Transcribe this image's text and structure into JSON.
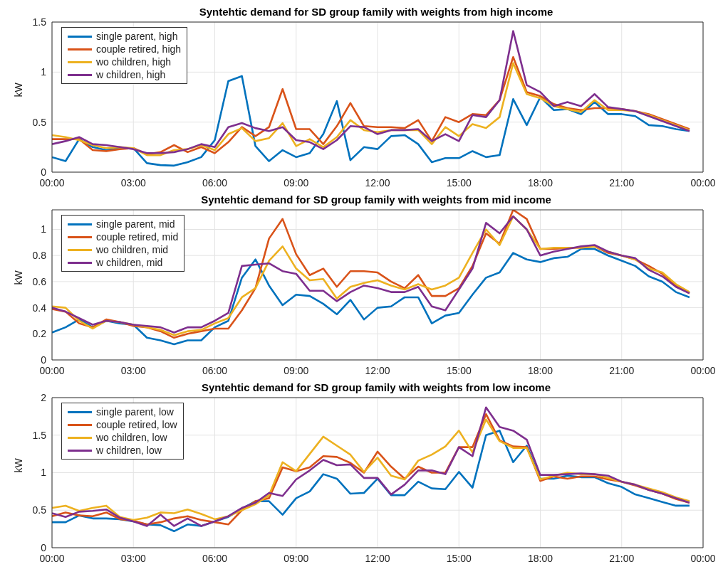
{
  "chart_data": [
    {
      "type": "line",
      "title": "Syntehtic demand for SD group family with weights from high income",
      "ylabel": "kW",
      "x": [
        0,
        0.5,
        1,
        1.5,
        2,
        2.5,
        3,
        3.5,
        4,
        4.5,
        5,
        5.5,
        6,
        6.5,
        7,
        7.5,
        8,
        8.5,
        9,
        9.5,
        10,
        10.5,
        11,
        11.5,
        12,
        12.5,
        13,
        13.5,
        14,
        14.5,
        15,
        15.5,
        16,
        16.5,
        17,
        17.5,
        18,
        18.5,
        19,
        19.5,
        20,
        20.5,
        21,
        21.5,
        22,
        22.5,
        23,
        23.5
      ],
      "xlim": [
        0,
        24
      ],
      "xticks": [
        {
          "value": 0,
          "label": "00:00"
        },
        {
          "value": 3,
          "label": "03:00"
        },
        {
          "value": 6,
          "label": "06:00"
        },
        {
          "value": 9,
          "label": "09:00"
        },
        {
          "value": 12,
          "label": "12:00"
        },
        {
          "value": 15,
          "label": "15:00"
        },
        {
          "value": 18,
          "label": "18:00"
        },
        {
          "value": 21,
          "label": "21:00"
        },
        {
          "value": 24,
          "label": "00:00"
        }
      ],
      "ylim": [
        0,
        1.5
      ],
      "yticks": [
        0,
        0.5,
        1,
        1.5
      ],
      "grid": true,
      "legend": "top left",
      "marker": "none",
      "line_style": "solid",
      "series": [
        {
          "name": "single parent, high",
          "color": "#0072bd",
          "values": [
            0.15,
            0.11,
            0.33,
            0.25,
            0.22,
            0.24,
            0.24,
            0.09,
            0.07,
            0.065,
            0.1,
            0.15,
            0.32,
            0.91,
            0.96,
            0.26,
            0.11,
            0.22,
            0.15,
            0.19,
            0.38,
            0.71,
            0.12,
            0.25,
            0.23,
            0.36,
            0.37,
            0.28,
            0.1,
            0.14,
            0.14,
            0.21,
            0.15,
            0.17,
            0.73,
            0.47,
            0.75,
            0.62,
            0.63,
            0.58,
            0.7,
            0.58,
            0.58,
            0.56,
            0.47,
            0.46,
            0.43,
            0.41
          ]
        },
        {
          "name": "couple retired, high",
          "color": "#d95319",
          "values": [
            0.33,
            0.33,
            0.33,
            0.22,
            0.21,
            0.23,
            0.24,
            0.18,
            0.2,
            0.27,
            0.2,
            0.25,
            0.19,
            0.3,
            0.45,
            0.36,
            0.45,
            0.83,
            0.43,
            0.43,
            0.28,
            0.46,
            0.69,
            0.46,
            0.45,
            0.45,
            0.44,
            0.52,
            0.31,
            0.55,
            0.5,
            0.58,
            0.57,
            0.72,
            1.15,
            0.8,
            0.76,
            0.68,
            0.64,
            0.62,
            0.64,
            0.64,
            0.63,
            0.61,
            0.58,
            0.53,
            0.48,
            0.43
          ]
        },
        {
          "name": "wo children, high",
          "color": "#edb120",
          "values": [
            0.37,
            0.35,
            0.32,
            0.27,
            0.24,
            0.25,
            0.24,
            0.17,
            0.17,
            0.22,
            0.23,
            0.27,
            0.22,
            0.38,
            0.44,
            0.31,
            0.34,
            0.49,
            0.26,
            0.33,
            0.25,
            0.35,
            0.52,
            0.42,
            0.4,
            0.42,
            0.42,
            0.42,
            0.28,
            0.45,
            0.36,
            0.48,
            0.44,
            0.55,
            1.09,
            0.78,
            0.74,
            0.66,
            0.63,
            0.6,
            0.72,
            0.62,
            0.62,
            0.61,
            0.57,
            0.52,
            0.47,
            0.42
          ]
        },
        {
          "name": "w children, high",
          "color": "#7e2f8e",
          "values": [
            0.28,
            0.31,
            0.35,
            0.28,
            0.27,
            0.25,
            0.23,
            0.19,
            0.19,
            0.2,
            0.23,
            0.28,
            0.25,
            0.45,
            0.49,
            0.44,
            0.41,
            0.45,
            0.32,
            0.3,
            0.23,
            0.32,
            0.46,
            0.45,
            0.38,
            0.42,
            0.42,
            0.43,
            0.31,
            0.38,
            0.31,
            0.57,
            0.55,
            0.72,
            1.41,
            0.87,
            0.8,
            0.66,
            0.7,
            0.66,
            0.78,
            0.65,
            0.63,
            0.61,
            0.56,
            0.51,
            0.46,
            0.41
          ]
        }
      ]
    },
    {
      "type": "line",
      "title": "Syntehtic demand for SD group family with weights from mid income",
      "ylabel": "kW",
      "x": [
        0,
        0.5,
        1,
        1.5,
        2,
        2.5,
        3,
        3.5,
        4,
        4.5,
        5,
        5.5,
        6,
        6.5,
        7,
        7.5,
        8,
        8.5,
        9,
        9.5,
        10,
        10.5,
        11,
        11.5,
        12,
        12.5,
        13,
        13.5,
        14,
        14.5,
        15,
        15.5,
        16,
        16.5,
        17,
        17.5,
        18,
        18.5,
        19,
        19.5,
        20,
        20.5,
        21,
        21.5,
        22,
        22.5,
        23,
        23.5
      ],
      "xlim": [
        0,
        24
      ],
      "xticks": [
        {
          "value": 0,
          "label": "00:00"
        },
        {
          "value": 3,
          "label": "03:00"
        },
        {
          "value": 6,
          "label": "06:00"
        },
        {
          "value": 9,
          "label": "09:00"
        },
        {
          "value": 12,
          "label": "12:00"
        },
        {
          "value": 15,
          "label": "15:00"
        },
        {
          "value": 18,
          "label": "18:00"
        },
        {
          "value": 21,
          "label": "21:00"
        },
        {
          "value": 24,
          "label": "00:00"
        }
      ],
      "ylim": [
        0,
        1.15
      ],
      "yticks": [
        0,
        0.2,
        0.4,
        0.6,
        0.8,
        1
      ],
      "grid": true,
      "legend": "top left",
      "marker": "none",
      "line_style": "solid",
      "series": [
        {
          "name": "single parent, mid",
          "color": "#0072bd",
          "values": [
            0.21,
            0.25,
            0.31,
            0.25,
            0.3,
            0.28,
            0.27,
            0.17,
            0.15,
            0.12,
            0.15,
            0.15,
            0.25,
            0.3,
            0.63,
            0.77,
            0.57,
            0.42,
            0.5,
            0.49,
            0.43,
            0.35,
            0.46,
            0.31,
            0.4,
            0.41,
            0.48,
            0.48,
            0.28,
            0.34,
            0.36,
            0.5,
            0.63,
            0.67,
            0.82,
            0.77,
            0.75,
            0.78,
            0.79,
            0.85,
            0.85,
            0.8,
            0.76,
            0.72,
            0.64,
            0.6,
            0.52,
            0.48
          ]
        },
        {
          "name": "couple retired, mid",
          "color": "#d95319",
          "values": [
            0.39,
            0.37,
            0.28,
            0.25,
            0.31,
            0.29,
            0.26,
            0.25,
            0.22,
            0.17,
            0.2,
            0.22,
            0.24,
            0.24,
            0.38,
            0.55,
            0.93,
            1.08,
            0.81,
            0.65,
            0.7,
            0.56,
            0.68,
            0.68,
            0.67,
            0.6,
            0.55,
            0.65,
            0.49,
            0.49,
            0.55,
            0.72,
            0.97,
            0.89,
            1.15,
            1.08,
            0.85,
            0.85,
            0.86,
            0.86,
            0.87,
            0.82,
            0.8,
            0.77,
            0.72,
            0.66,
            0.57,
            0.51
          ]
        },
        {
          "name": "wo children, mid",
          "color": "#edb120",
          "values": [
            0.41,
            0.4,
            0.3,
            0.24,
            0.3,
            0.29,
            0.27,
            0.25,
            0.23,
            0.19,
            0.22,
            0.23,
            0.28,
            0.32,
            0.48,
            0.55,
            0.76,
            0.87,
            0.7,
            0.61,
            0.62,
            0.47,
            0.56,
            0.59,
            0.61,
            0.57,
            0.54,
            0.58,
            0.54,
            0.57,
            0.63,
            0.82,
            1.0,
            0.88,
            1.1,
            1.0,
            0.85,
            0.86,
            0.86,
            0.86,
            0.87,
            0.83,
            0.8,
            0.77,
            0.7,
            0.67,
            0.58,
            0.52
          ]
        },
        {
          "name": "w children, mid",
          "color": "#7e2f8e",
          "values": [
            0.4,
            0.37,
            0.32,
            0.27,
            0.3,
            0.29,
            0.27,
            0.26,
            0.25,
            0.21,
            0.25,
            0.25,
            0.3,
            0.36,
            0.72,
            0.73,
            0.74,
            0.68,
            0.66,
            0.53,
            0.53,
            0.45,
            0.52,
            0.57,
            0.55,
            0.52,
            0.52,
            0.56,
            0.41,
            0.38,
            0.54,
            0.7,
            1.05,
            0.97,
            1.1,
            1.0,
            0.8,
            0.83,
            0.85,
            0.87,
            0.88,
            0.83,
            0.8,
            0.78,
            0.69,
            0.64,
            0.56,
            0.51
          ]
        }
      ]
    },
    {
      "type": "line",
      "title": "Syntehtic demand for SD group family with weights from low income",
      "ylabel": "kW",
      "x": [
        0,
        0.5,
        1,
        1.5,
        2,
        2.5,
        3,
        3.5,
        4,
        4.5,
        5,
        5.5,
        6,
        6.5,
        7,
        7.5,
        8,
        8.5,
        9,
        9.5,
        10,
        10.5,
        11,
        11.5,
        12,
        12.5,
        13,
        13.5,
        14,
        14.5,
        15,
        15.5,
        16,
        16.5,
        17,
        17.5,
        18,
        18.5,
        19,
        19.5,
        20,
        20.5,
        21,
        21.5,
        22,
        22.5,
        23,
        23.5
      ],
      "xlim": [
        0,
        24
      ],
      "xticks": [
        {
          "value": 0,
          "label": "00:00"
        },
        {
          "value": 3,
          "label": "03:00"
        },
        {
          "value": 6,
          "label": "06:00"
        },
        {
          "value": 9,
          "label": "09:00"
        },
        {
          "value": 12,
          "label": "12:00"
        },
        {
          "value": 15,
          "label": "15:00"
        },
        {
          "value": 18,
          "label": "18:00"
        },
        {
          "value": 21,
          "label": "21:00"
        },
        {
          "value": 24,
          "label": "00:00"
        }
      ],
      "ylim": [
        0,
        2
      ],
      "yticks": [
        0,
        0.5,
        1,
        1.5,
        2
      ],
      "grid": true,
      "legend": "top left",
      "marker": "none",
      "line_style": "solid",
      "series": [
        {
          "name": "single parent, low",
          "color": "#0072bd",
          "values": [
            0.34,
            0.34,
            0.43,
            0.39,
            0.39,
            0.38,
            0.35,
            0.31,
            0.3,
            0.22,
            0.31,
            0.29,
            0.35,
            0.41,
            0.52,
            0.62,
            0.62,
            0.44,
            0.66,
            0.75,
            0.98,
            0.92,
            0.72,
            0.73,
            0.92,
            0.7,
            0.7,
            0.88,
            0.79,
            0.78,
            1.01,
            0.8,
            1.5,
            1.56,
            1.14,
            1.36,
            0.92,
            0.92,
            0.96,
            0.94,
            0.94,
            0.86,
            0.81,
            0.71,
            0.66,
            0.61,
            0.56,
            0.56
          ]
        },
        {
          "name": "couple retired, low",
          "color": "#d95319",
          "values": [
            0.42,
            0.47,
            0.43,
            0.42,
            0.47,
            0.38,
            0.36,
            0.31,
            0.34,
            0.39,
            0.42,
            0.37,
            0.34,
            0.31,
            0.5,
            0.62,
            0.66,
            1.07,
            1.02,
            1.07,
            1.22,
            1.21,
            1.13,
            1.0,
            1.28,
            1.08,
            0.92,
            1.08,
            1.0,
            1.0,
            1.34,
            1.34,
            1.78,
            1.43,
            1.35,
            1.34,
            0.89,
            0.95,
            0.92,
            0.95,
            0.95,
            0.91,
            0.88,
            0.83,
            0.77,
            0.72,
            0.65,
            0.6
          ]
        },
        {
          "name": "wo children, low",
          "color": "#edb120",
          "values": [
            0.53,
            0.56,
            0.49,
            0.53,
            0.56,
            0.41,
            0.37,
            0.4,
            0.47,
            0.46,
            0.51,
            0.45,
            0.38,
            0.42,
            0.5,
            0.58,
            0.7,
            1.14,
            1.02,
            1.25,
            1.48,
            1.36,
            1.24,
            1.01,
            1.2,
            0.96,
            0.91,
            1.16,
            1.24,
            1.35,
            1.56,
            1.27,
            1.71,
            1.42,
            1.33,
            1.33,
            0.91,
            0.96,
            1.0,
            0.98,
            0.98,
            0.93,
            0.88,
            0.84,
            0.79,
            0.74,
            0.67,
            0.62
          ]
        },
        {
          "name": "w children, low",
          "color": "#7e2f8e",
          "values": [
            0.46,
            0.41,
            0.48,
            0.49,
            0.51,
            0.4,
            0.35,
            0.29,
            0.44,
            0.29,
            0.39,
            0.29,
            0.35,
            0.42,
            0.53,
            0.6,
            0.73,
            0.69,
            0.91,
            1.03,
            1.17,
            1.1,
            1.11,
            0.93,
            0.93,
            0.71,
            0.84,
            1.03,
            1.03,
            0.98,
            1.34,
            1.22,
            1.87,
            1.61,
            1.56,
            1.44,
            0.97,
            0.97,
            0.98,
            0.99,
            0.98,
            0.96,
            0.88,
            0.84,
            0.77,
            0.72,
            0.66,
            0.6
          ]
        }
      ]
    }
  ]
}
